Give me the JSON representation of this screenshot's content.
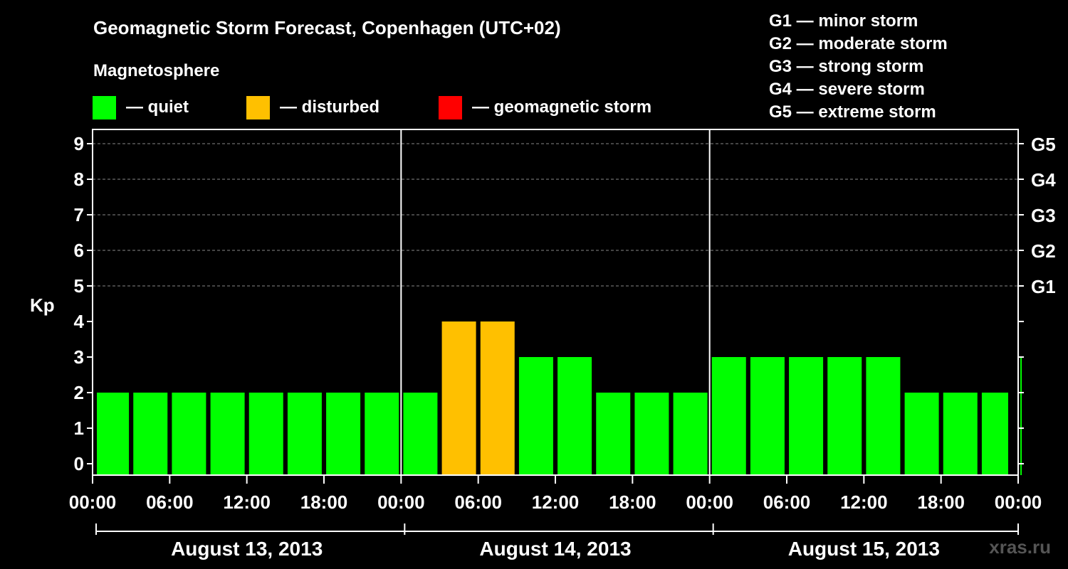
{
  "title": "Geomagnetic Storm Forecast, Copenhagen (UTC+02)",
  "legend": {
    "heading": "Magnetosphere",
    "items": [
      {
        "label": "— quiet",
        "color": "#00ff00"
      },
      {
        "label": "— disturbed",
        "color": "#ffc000"
      },
      {
        "label": "— geomagnetic storm",
        "color": "#ff0000"
      }
    ]
  },
  "g_levels": [
    "G1 — minor storm",
    "G2 — moderate storm",
    "G3 — strong storm",
    "G4 — severe storm",
    "G5 — extreme storm"
  ],
  "watermark": "xras.ru",
  "chart_data": {
    "type": "bar",
    "ylabel": "Kp",
    "ylim": [
      0,
      9
    ],
    "y_ticks": [
      0,
      1,
      2,
      3,
      4,
      5,
      6,
      7,
      8,
      9
    ],
    "right_ticks": [
      {
        "kp": 5,
        "label": "G1"
      },
      {
        "kp": 6,
        "label": "G2"
      },
      {
        "kp": 7,
        "label": "G3"
      },
      {
        "kp": 8,
        "label": "G4"
      },
      {
        "kp": 9,
        "label": "G5"
      }
    ],
    "x_tick_labels": [
      "00:00",
      "06:00",
      "12:00",
      "18:00",
      "00:00",
      "06:00",
      "12:00",
      "18:00",
      "00:00",
      "06:00",
      "12:00",
      "18:00",
      "00:00"
    ],
    "days": [
      "August 13, 2013",
      "August 14, 2013",
      "August 15, 2013"
    ],
    "interval_hours": 3,
    "values": [
      2,
      2,
      2,
      2,
      2,
      2,
      2,
      2,
      2,
      4,
      4,
      3,
      3,
      2,
      2,
      2,
      3,
      3,
      3,
      3,
      3,
      2,
      2,
      2,
      3
    ],
    "colors": {
      "quiet": "#00ff00",
      "disturbed": "#ffc000",
      "storm": "#ff0000"
    },
    "grid": "dashed horizontal"
  }
}
